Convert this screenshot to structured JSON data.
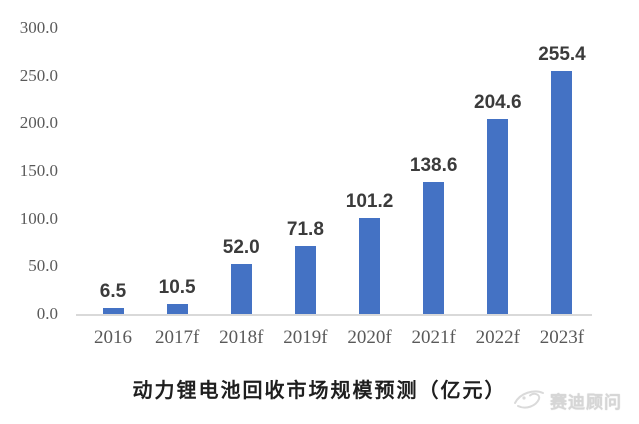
{
  "chart_data": {
    "type": "bar",
    "title": "动力锂电池回收市场规模预测（亿元）",
    "categories": [
      "2016",
      "2017f",
      "2018f",
      "2019f",
      "2020f",
      "2021f",
      "2022f",
      "2023f"
    ],
    "values": [
      6.5,
      10.5,
      52.0,
      71.8,
      101.2,
      138.6,
      204.6,
      255.4
    ],
    "value_labels": [
      "6.5",
      "10.5",
      "52.0",
      "71.8",
      "101.2",
      "138.6",
      "204.6",
      "255.4"
    ],
    "xlabel": "",
    "ylabel": "",
    "ylim": [
      0,
      300
    ],
    "yticks": [
      {
        "value": 0,
        "label": "0.0"
      },
      {
        "value": 50,
        "label": "50.0"
      },
      {
        "value": 100,
        "label": "100.0"
      },
      {
        "value": 150,
        "label": "150.0"
      },
      {
        "value": 200,
        "label": "200.0"
      },
      {
        "value": 250,
        "label": "250.0"
      },
      {
        "value": 300,
        "label": "300.0"
      }
    ],
    "grid": false,
    "legend_position": "none",
    "bar_color": "#4472c4",
    "axis_text_color": "#595959",
    "value_label_color": "#3b3b3b",
    "axis_line_color": "#d9d9d9"
  },
  "watermark": {
    "logo_icon": "ccid-swoosh-logo",
    "text": "赛迪顾问",
    "color": "#d6d6d6"
  }
}
